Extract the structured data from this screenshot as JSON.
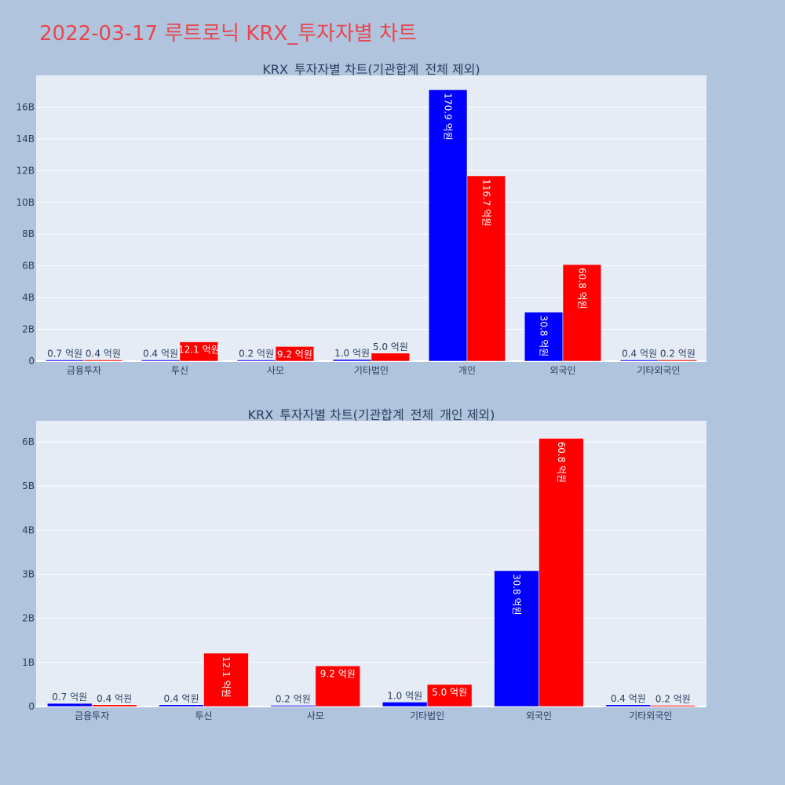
{
  "page_title": "2022-03-17 루트로닉 KRX_투자자별 차트",
  "colors": {
    "background": "#b0c4de",
    "plot_bg": "#e5ecf6",
    "series_a": "#0000ff",
    "series_b": "#ff0000",
    "title": "#e8464f"
  },
  "chart_data": [
    {
      "type": "bar",
      "title": "KRX_투자자별 차트(기관합계_전체 제외)",
      "categories": [
        "금융투자",
        "투신",
        "사모",
        "기타법인",
        "개인",
        "외국인",
        "기타외국인"
      ],
      "series": [
        {
          "values": [
            70000000,
            40000000,
            20000000,
            100000000,
            17090000000,
            3080000000,
            40000000
          ],
          "labels": [
            "0.7 억원",
            "0.4 억원",
            "0.2 억원",
            "1.0 억원",
            "170.9 억원",
            "30.8 억원",
            "0.4 억원"
          ]
        },
        {
          "values": [
            40000000,
            1210000000,
            920000000,
            500000000,
            11670000000,
            6080000000,
            20000000
          ],
          "labels": [
            "0.4 억원",
            "12.1 억원",
            "9.2 억원",
            "5.0 억원",
            "116.7 억원",
            "60.8 억원",
            "0.2 억원"
          ]
        }
      ],
      "yticks": [
        "0",
        "2B",
        "4B",
        "6B",
        "8B",
        "10B",
        "12B",
        "14B",
        "16B"
      ],
      "ylim": [
        0,
        18000000000
      ],
      "grid": true
    },
    {
      "type": "bar",
      "title": "KRX_투자자별 차트(기관합계_전체_개인 제외)",
      "categories": [
        "금융투자",
        "투신",
        "사모",
        "기타법인",
        "외국인",
        "기타외국인"
      ],
      "series": [
        {
          "values": [
            70000000,
            40000000,
            20000000,
            100000000,
            3080000000,
            40000000
          ],
          "labels": [
            "0.7 억원",
            "0.4 억원",
            "0.2 억원",
            "1.0 억원",
            "30.8 억원",
            "0.4 억원"
          ]
        },
        {
          "values": [
            40000000,
            1210000000,
            920000000,
            500000000,
            6080000000,
            20000000
          ],
          "labels": [
            "0.4 억원",
            "12.1 억원",
            "9.2 억원",
            "5.0 억원",
            "60.8 억원",
            "0.2 억원"
          ]
        }
      ],
      "yticks": [
        "0",
        "1B",
        "2B",
        "3B",
        "4B",
        "5B",
        "6B"
      ],
      "ylim": [
        0,
        6480000000
      ],
      "grid": true
    }
  ]
}
